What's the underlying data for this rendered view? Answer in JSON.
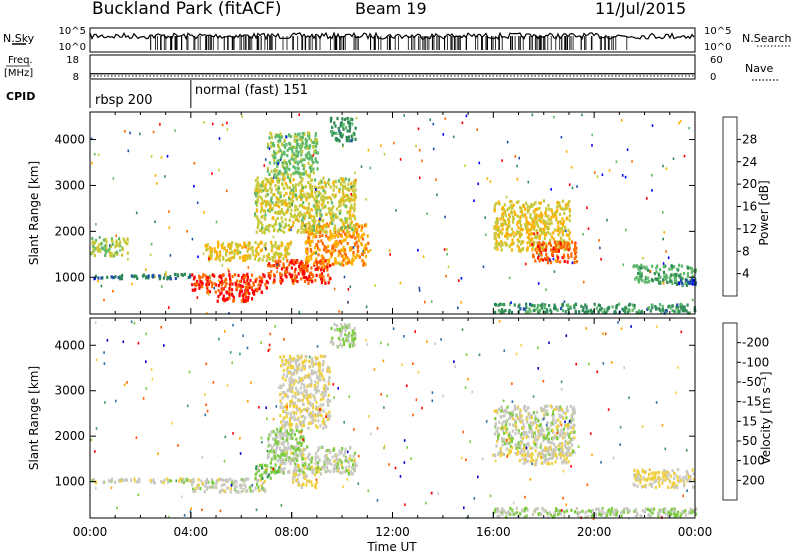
{
  "header": {
    "title": "Buckland Park (fitACF)",
    "beam": "Beam 19",
    "date": "11/Jul/2015"
  },
  "top_panels": {
    "nsky_label": "N.Sky",
    "nsearch_label": "N.Search",
    "freq_label_1": "Freq.",
    "freq_label_2": "[MHz]",
    "nave_label": "Nave",
    "cpid_label": "CPID",
    "nsky_ticks": [
      "10^5",
      "10^0"
    ],
    "nsearch_ticks": [
      "10^5",
      "10^0"
    ],
    "freq_ticks": [
      "18",
      "8"
    ],
    "nave_ticks": [
      "60",
      "0"
    ],
    "cpid_segments": [
      {
        "label": "rbsp 200",
        "start_h": 0,
        "end_h": 4
      },
      {
        "label": "normal (fast) 151",
        "start_h": 4,
        "end_h": 24
      }
    ],
    "nsky_range": [
      0,
      5
    ],
    "freq_range": [
      8,
      18
    ],
    "freq_value": 10.2,
    "nave_range": [
      0,
      60
    ]
  },
  "chart_data": [
    {
      "type": "heatmap",
      "title": "",
      "xlabel": "",
      "ylabel": "Slant Range [km]",
      "xlim": [
        0,
        24
      ],
      "ylim": [
        200,
        4600
      ],
      "yticks": [
        1000,
        2000,
        3000,
        4000
      ],
      "colorbar": {
        "label": "Power [dB]",
        "ticks": [
          "4",
          "8",
          "12",
          "16",
          "20",
          "24",
          "28"
        ],
        "range": [
          0,
          30
        ],
        "colors": [
          "#0000ff",
          "#1f4fa8",
          "#2e8b57",
          "#5fb96a",
          "#c8c83a",
          "#ffb000",
          "#ff6a00",
          "#ff0000"
        ]
      },
      "regions": [
        {
          "t0": 0.0,
          "t1": 4.0,
          "r0": 1000,
          "r1": 1100,
          "v": 8
        },
        {
          "t0": 0.0,
          "t1": 1.5,
          "r0": 1500,
          "r1": 1900,
          "v": 16
        },
        {
          "t0": 4.0,
          "t1": 7.0,
          "r0": 700,
          "r1": 1100,
          "v": 26
        },
        {
          "t0": 5.0,
          "t1": 6.5,
          "r0": 500,
          "r1": 700,
          "v": 28
        },
        {
          "t0": 4.5,
          "t1": 8.0,
          "r0": 1400,
          "r1": 1800,
          "v": 18
        },
        {
          "t0": 7.0,
          "t1": 9.5,
          "r0": 900,
          "r1": 1400,
          "v": 26
        },
        {
          "t0": 8.5,
          "t1": 11.0,
          "r0": 1300,
          "r1": 2200,
          "v": 22
        },
        {
          "t0": 6.5,
          "t1": 10.5,
          "r0": 2000,
          "r1": 3200,
          "v": 17
        },
        {
          "t0": 7.0,
          "t1": 9.0,
          "r0": 3200,
          "r1": 4200,
          "v": 14
        },
        {
          "t0": 9.5,
          "t1": 10.5,
          "r0": 4000,
          "r1": 4500,
          "v": 10
        },
        {
          "t0": 16.0,
          "t1": 19.0,
          "r0": 1600,
          "r1": 2700,
          "v": 18
        },
        {
          "t0": 17.5,
          "t1": 19.3,
          "r0": 1350,
          "r1": 1800,
          "v": 25
        },
        {
          "t0": 21.5,
          "t1": 24.0,
          "r0": 900,
          "r1": 1300,
          "v": 12
        },
        {
          "t0": 23.0,
          "t1": 24.0,
          "r0": 850,
          "r1": 1000,
          "v": 6
        },
        {
          "t0": 16.0,
          "t1": 24.0,
          "r0": 250,
          "r1": 450,
          "v": 10
        }
      ]
    },
    {
      "type": "heatmap",
      "title": "",
      "xlabel": "Time UT",
      "ylabel": "Slant Range [km]",
      "xlim": [
        0,
        24
      ],
      "ylim": [
        200,
        4600
      ],
      "xticks": [
        "00:00",
        "04:00",
        "08:00",
        "12:00",
        "16:00",
        "20:00",
        "00:00"
      ],
      "yticks": [
        1000,
        2000,
        3000,
        4000
      ],
      "colorbar": {
        "label": "Velocity [m s⁻¹]",
        "ticks": [
          "200",
          "100",
          "50",
          "15",
          "-15",
          "-50",
          "-100",
          "-200"
        ],
        "range": [
          -250,
          250
        ],
        "colors": [
          "#0000cc",
          "#2d6fa6",
          "#3a9a5a",
          "#7ccc3f",
          "#c8c8c0",
          "#f0d040",
          "#ffa000",
          "#ff5a00",
          "#ff0000"
        ]
      },
      "regions": [
        {
          "t0": 0.0,
          "t1": 4.0,
          "r0": 1000,
          "r1": 1100,
          "v": 0
        },
        {
          "t0": 4.0,
          "t1": 7.0,
          "r0": 800,
          "r1": 1100,
          "v": 0
        },
        {
          "t0": 6.5,
          "t1": 7.5,
          "r0": 1100,
          "r1": 1400,
          "v": -60
        },
        {
          "t0": 7.0,
          "t1": 8.5,
          "r0": 1400,
          "r1": 2200,
          "v": -30
        },
        {
          "t0": 7.5,
          "t1": 10.5,
          "r0": 1200,
          "r1": 1800,
          "v": 0
        },
        {
          "t0": 8.0,
          "t1": 9.0,
          "r0": 900,
          "r1": 1200,
          "v": 30
        },
        {
          "t0": 7.5,
          "t1": 9.5,
          "r0": 2200,
          "r1": 3800,
          "v": 20
        },
        {
          "t0": 9.5,
          "t1": 10.5,
          "r0": 4000,
          "r1": 4500,
          "v": -20
        },
        {
          "t0": 16.0,
          "t1": 19.2,
          "r0": 1600,
          "r1": 2700,
          "v": 0
        },
        {
          "t0": 17.0,
          "t1": 19.0,
          "r0": 1400,
          "r1": 1800,
          "v": 25
        },
        {
          "t0": 21.5,
          "t1": 24.0,
          "r0": 900,
          "r1": 1300,
          "v": 30
        },
        {
          "t0": 16.0,
          "t1": 24.0,
          "r0": 250,
          "r1": 450,
          "v": -20
        }
      ]
    }
  ]
}
